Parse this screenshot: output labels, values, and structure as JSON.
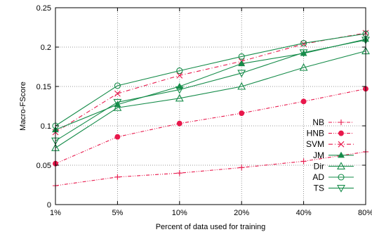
{
  "chart_data": {
    "type": "line",
    "title": "",
    "xlabel": "Percent of data used for training",
    "ylabel": "Macro-FScore",
    "categories": [
      "1%",
      "5%",
      "10%",
      "20%",
      "40%",
      "80%"
    ],
    "ylim": [
      0,
      0.25
    ],
    "yticks": [
      0,
      0.05,
      0.1,
      0.15,
      0.2,
      0.25
    ],
    "ytick_labels": [
      "0",
      "0.05",
      "0.1",
      "0.15",
      "0.2",
      "0.25"
    ],
    "grid": true,
    "legend_position": "bottom-right",
    "series": [
      {
        "name": "NB",
        "marker": "plus",
        "dash": "dash-dot-dot",
        "color": "#e8174b",
        "values": [
          0.024,
          0.035,
          0.04,
          0.047,
          0.055,
          0.067
        ]
      },
      {
        "name": "HNB",
        "marker": "filled-circle",
        "dash": "dash-dot-dot",
        "color": "#e8174b",
        "values": [
          0.052,
          0.086,
          0.103,
          0.116,
          0.131,
          0.147
        ]
      },
      {
        "name": "SVM",
        "marker": "cross",
        "dash": "dash-dot",
        "color": "#e8174b",
        "values": [
          0.092,
          0.141,
          0.164,
          0.182,
          0.204,
          0.218
        ]
      },
      {
        "name": "JM",
        "marker": "filled-triangle",
        "dash": "solid",
        "color": "#168c4a",
        "values": [
          0.095,
          0.127,
          0.15,
          0.179,
          0.192,
          0.21
        ]
      },
      {
        "name": "Dir",
        "marker": "open-triangle",
        "dash": "solid",
        "color": "#168c4a",
        "values": [
          0.072,
          0.123,
          0.135,
          0.15,
          0.174,
          0.195
        ]
      },
      {
        "name": "AD",
        "marker": "open-circle",
        "dash": "solid",
        "color": "#168c4a",
        "values": [
          0.1,
          0.151,
          0.17,
          0.188,
          0.205,
          0.217
        ]
      },
      {
        "name": "TS",
        "marker": "open-down-triangle",
        "dash": "solid",
        "color": "#168c4a",
        "values": [
          0.081,
          0.13,
          0.146,
          0.167,
          0.193,
          0.209
        ]
      }
    ]
  }
}
